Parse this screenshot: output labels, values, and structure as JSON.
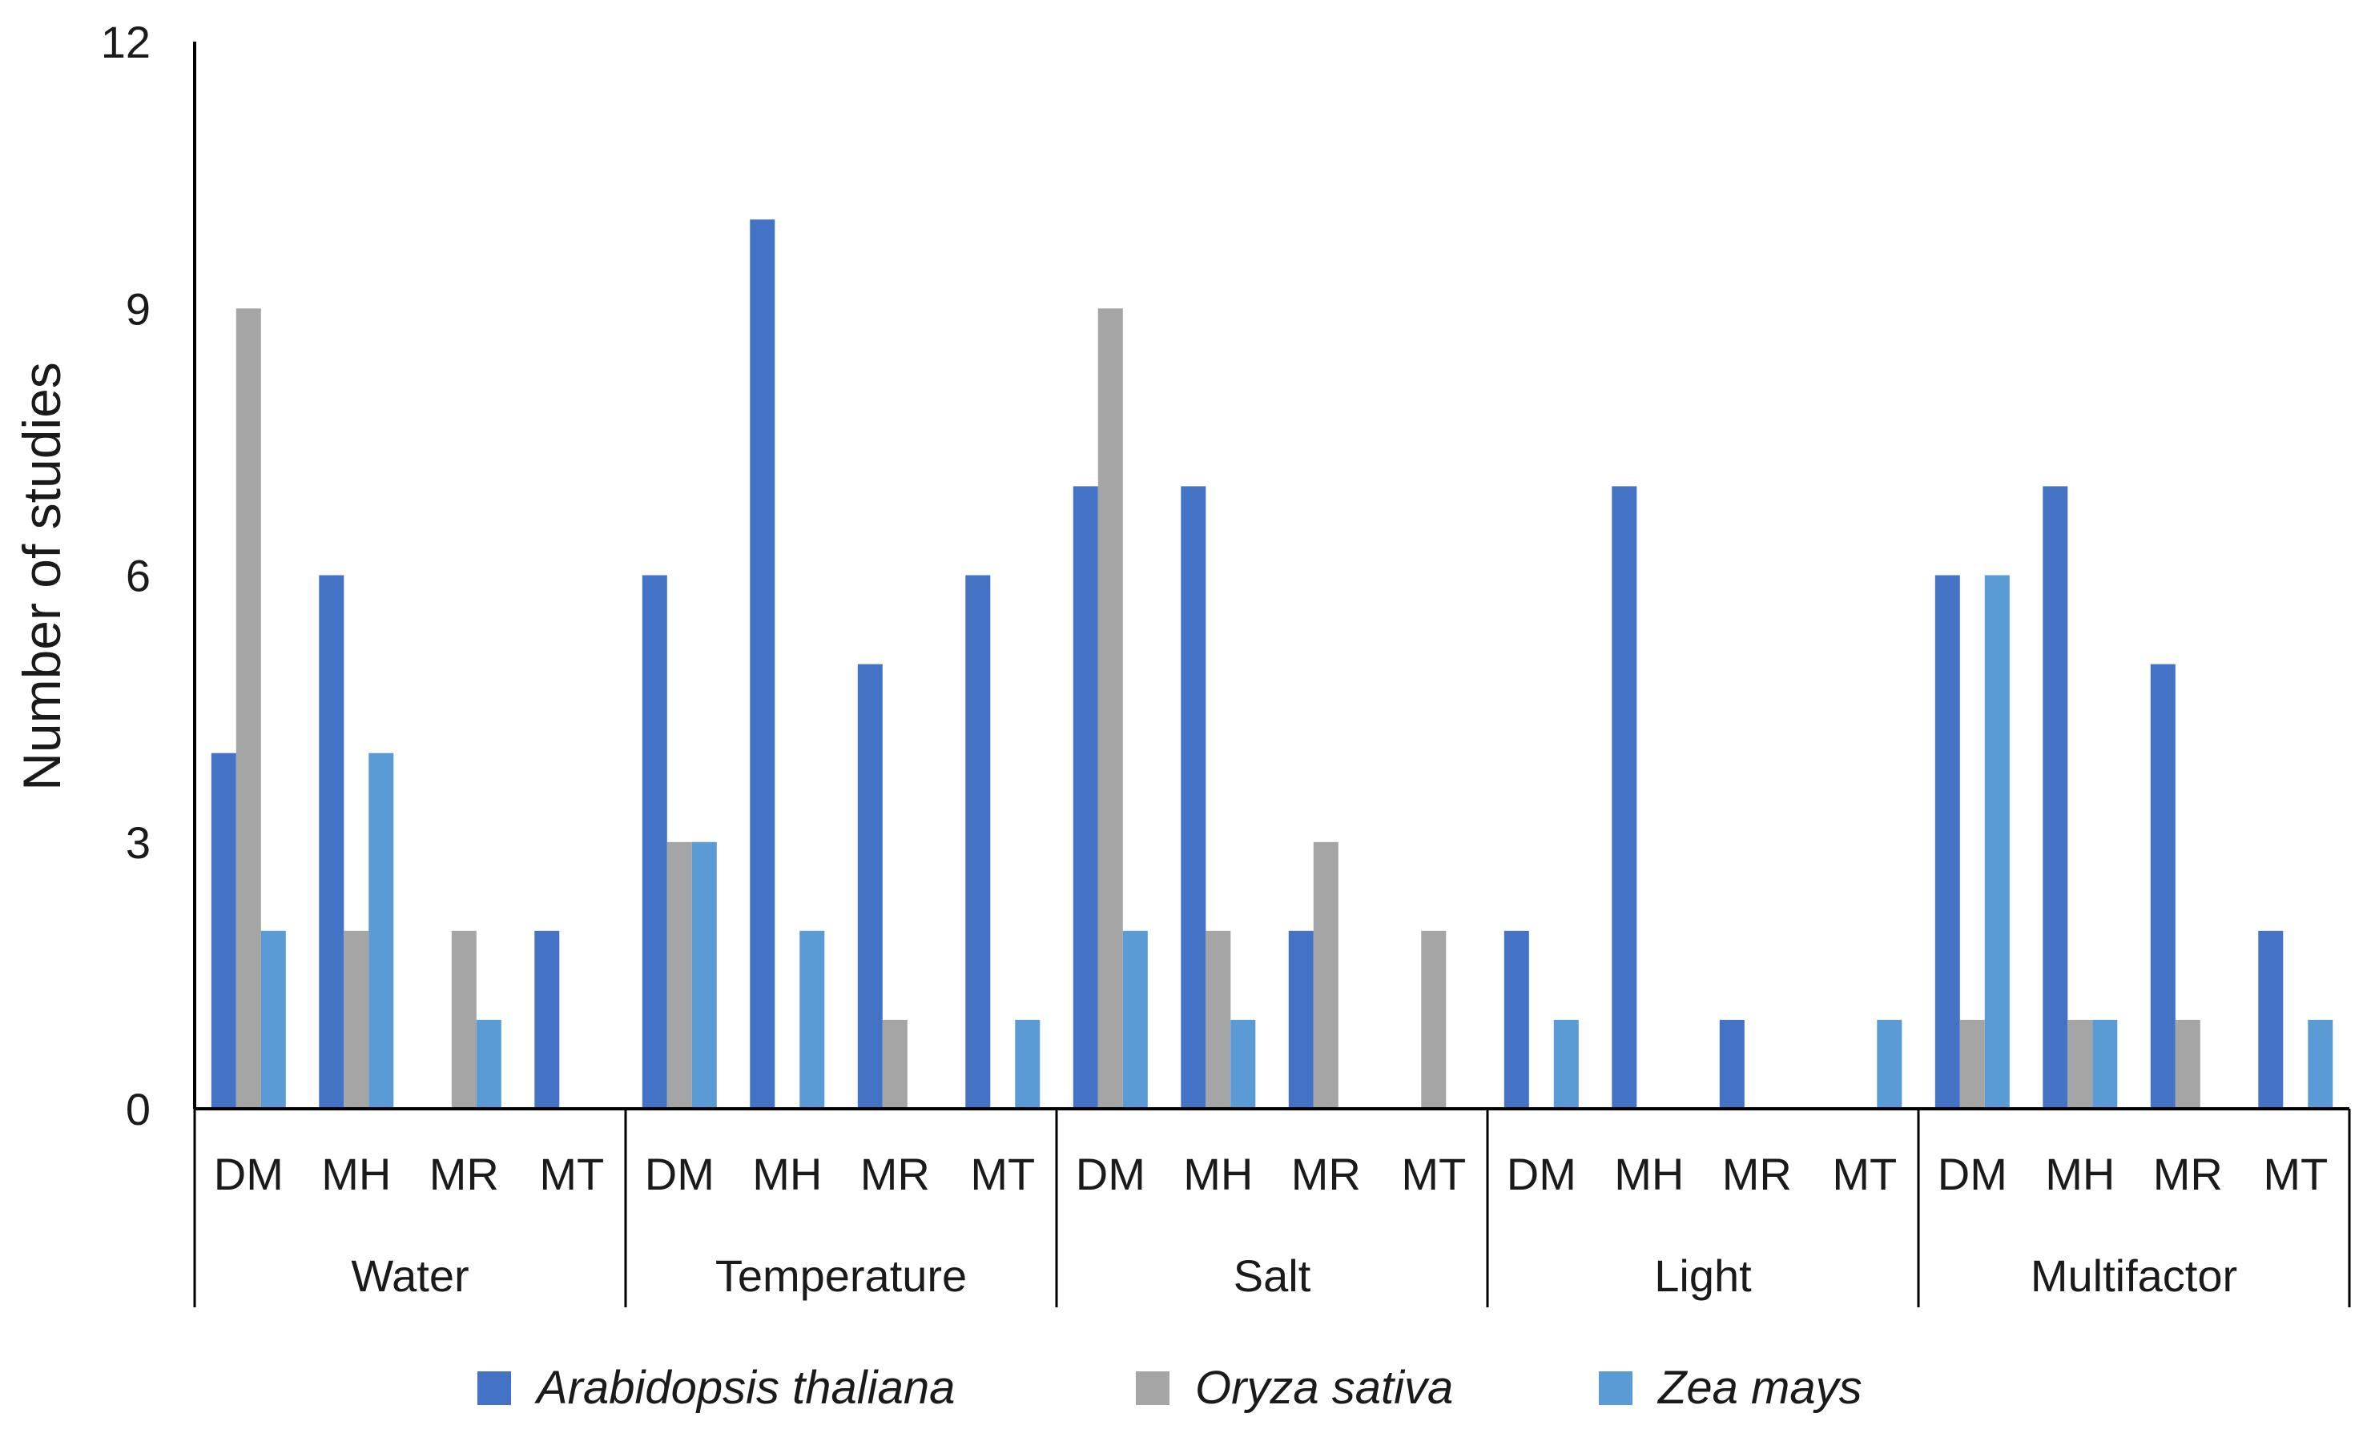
{
  "chart_data": {
    "type": "bar",
    "title": "",
    "xlabel": "",
    "ylabel": "Number of studies",
    "ylim": [
      0,
      12
    ],
    "yticks": [
      0,
      3,
      6,
      9,
      12
    ],
    "grid": false,
    "groups": [
      {
        "label": "Water",
        "subcategories": [
          "DM",
          "MH",
          "MR",
          "MT"
        ]
      },
      {
        "label": "Temperature",
        "subcategories": [
          "DM",
          "MH",
          "MR",
          "MT"
        ]
      },
      {
        "label": "Salt",
        "subcategories": [
          "DM",
          "MH",
          "MR",
          "MT"
        ]
      },
      {
        "label": "Light",
        "subcategories": [
          "DM",
          "MH",
          "MR",
          "MT"
        ]
      },
      {
        "label": "Multifactor",
        "subcategories": [
          "DM",
          "MH",
          "MR",
          "MT"
        ]
      }
    ],
    "series": [
      {
        "name": "Arabidopsis thaliana",
        "color": "#4472C4",
        "values": [
          4,
          6,
          0,
          2,
          6,
          10,
          5,
          6,
          7,
          7,
          2,
          0,
          2,
          7,
          1,
          0,
          6,
          7,
          5,
          2
        ]
      },
      {
        "name": "Oryza sativa",
        "color": "#A5A5A5",
        "values": [
          9,
          2,
          2,
          0,
          3,
          0,
          1,
          0,
          9,
          2,
          3,
          2,
          0,
          0,
          0,
          0,
          1,
          1,
          1,
          0
        ]
      },
      {
        "name": "Zea mays",
        "color": "#5B9BD5",
        "values": [
          2,
          4,
          1,
          0,
          3,
          2,
          0,
          1,
          2,
          1,
          0,
          0,
          1,
          0,
          0,
          1,
          6,
          1,
          0,
          1
        ]
      }
    ],
    "legend_position": "bottom"
  }
}
